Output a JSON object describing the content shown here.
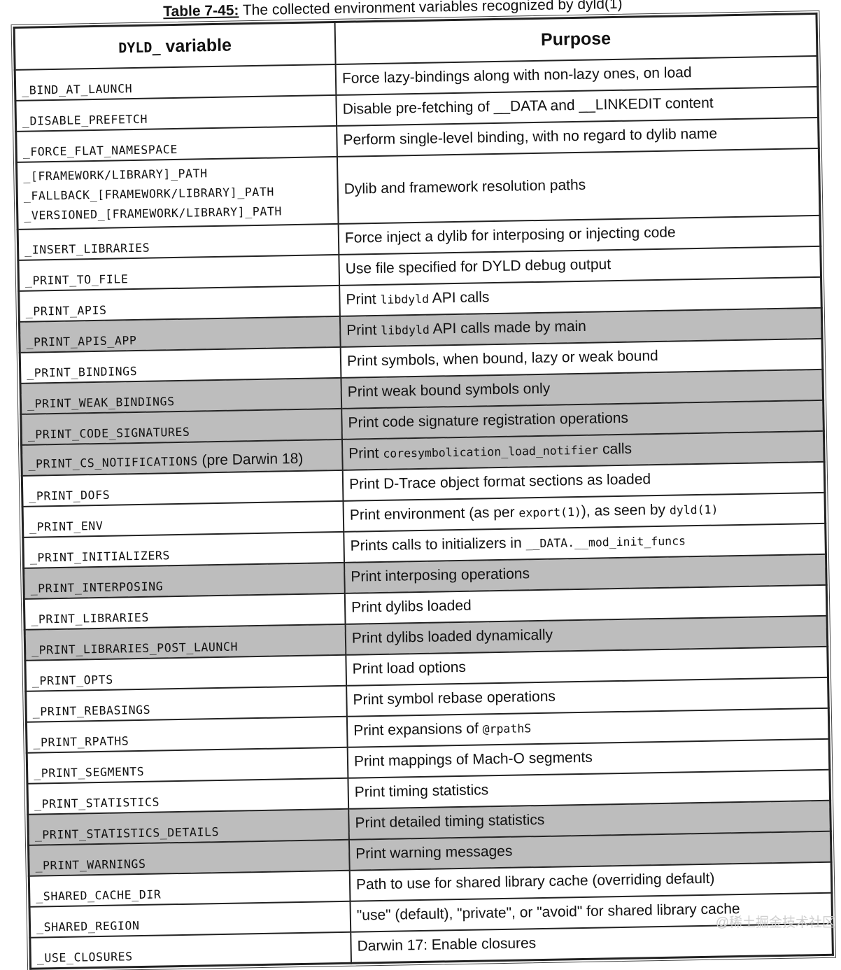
{
  "caption": {
    "label": "Table 7-45:",
    "text": " The collected environment variables recognized by dyld(1)"
  },
  "header": {
    "variable_prefix": "DYLD_",
    "variable_word": " variable",
    "purpose": "Purpose"
  },
  "colors": {
    "shade": "#bdbdbd",
    "border": "#222222"
  },
  "rows": [
    {
      "variable": [
        "_BIND_AT_LAUNCH"
      ],
      "purpose": [
        {
          "t": "Force lazy-bindings along with non-lazy ones, on load"
        }
      ],
      "shaded": false
    },
    {
      "variable": [
        "_DISABLE_PREFETCH"
      ],
      "purpose": [
        {
          "t": "Disable pre-fetching of __DATA and __LINKEDIT content"
        }
      ],
      "shaded": false
    },
    {
      "variable": [
        "_FORCE_FLAT_NAMESPACE"
      ],
      "purpose": [
        {
          "t": "Perform single-level binding, with no regard to dylib name"
        }
      ],
      "shaded": false
    },
    {
      "variable": [
        "_[FRAMEWORK/LIBRARY]_PATH",
        "_FALLBACK_[FRAMEWORK/LIBRARY]_PATH",
        "_VERSIONED_[FRAMEWORK/LIBRARY]_PATH"
      ],
      "purpose": [
        {
          "t": "Dylib and framework resolution paths"
        }
      ],
      "shaded": false
    },
    {
      "variable": [
        "_INSERT_LIBRARIES"
      ],
      "purpose": [
        {
          "t": "Force inject a dylib for interposing or injecting code"
        }
      ],
      "shaded": false
    },
    {
      "variable": [
        "_PRINT_TO_FILE"
      ],
      "purpose": [
        {
          "t": "Use file specified for DYLD debug output"
        }
      ],
      "shaded": false
    },
    {
      "variable": [
        "_PRINT_APIS"
      ],
      "purpose": [
        {
          "t": "Print "
        },
        {
          "t": "libdyld",
          "m": true
        },
        {
          "t": " API calls"
        }
      ],
      "shaded": false
    },
    {
      "variable": [
        "_PRINT_APIS_APP"
      ],
      "purpose": [
        {
          "t": "Print "
        },
        {
          "t": "libdyld",
          "m": true
        },
        {
          "t": " API calls made by main"
        }
      ],
      "shaded": true
    },
    {
      "variable": [
        "_PRINT_BINDINGS"
      ],
      "purpose": [
        {
          "t": "Print symbols, when bound, lazy or weak bound"
        }
      ],
      "shaded": false
    },
    {
      "variable": [
        "_PRINT_WEAK_BINDINGS"
      ],
      "purpose": [
        {
          "t": "Print weak bound symbols only"
        }
      ],
      "shaded": true
    },
    {
      "variable": [
        "_PRINT_CODE_SIGNATURES"
      ],
      "purpose": [
        {
          "t": "Print code signature registration operations"
        }
      ],
      "shaded": true
    },
    {
      "variable": [
        "_PRINT_CS_NOTIFICATIONS"
      ],
      "variable_note": " (pre Darwin 18)",
      "purpose": [
        {
          "t": "Print "
        },
        {
          "t": "coresymbolication_load_notifier",
          "m": true
        },
        {
          "t": " calls"
        }
      ],
      "shaded": true
    },
    {
      "variable": [
        "_PRINT_DOFS"
      ],
      "purpose": [
        {
          "t": "Print D-Trace object format sections as loaded"
        }
      ],
      "shaded": false
    },
    {
      "variable": [
        "_PRINT_ENV"
      ],
      "purpose": [
        {
          "t": "Print environment (as per "
        },
        {
          "t": "export(1)",
          "m": true
        },
        {
          "t": "), as seen by "
        },
        {
          "t": "dyld(1)",
          "m": true
        }
      ],
      "shaded": false
    },
    {
      "variable": [
        "_PRINT_INITIALIZERS"
      ],
      "purpose": [
        {
          "t": "Prints calls to initializers in "
        },
        {
          "t": "__DATA.__mod_init_funcs",
          "m": true
        }
      ],
      "shaded": false
    },
    {
      "variable": [
        "_PRINT_INTERPOSING"
      ],
      "purpose": [
        {
          "t": "Print interposing operations"
        }
      ],
      "shaded": true
    },
    {
      "variable": [
        "_PRINT_LIBRARIES"
      ],
      "purpose": [
        {
          "t": "Print dylibs loaded"
        }
      ],
      "shaded": false
    },
    {
      "variable": [
        "_PRINT_LIBRARIES_POST_LAUNCH"
      ],
      "purpose": [
        {
          "t": "Print dylibs loaded dynamically"
        }
      ],
      "shaded": true
    },
    {
      "variable": [
        "_PRINT_OPTS"
      ],
      "purpose": [
        {
          "t": "Print load options"
        }
      ],
      "shaded": false
    },
    {
      "variable": [
        "_PRINT_REBASINGS"
      ],
      "purpose": [
        {
          "t": "Print symbol rebase operations"
        }
      ],
      "shaded": false
    },
    {
      "variable": [
        "_PRINT_RPATHS"
      ],
      "purpose": [
        {
          "t": "Print expansions of "
        },
        {
          "t": "@rpathS",
          "m": true
        }
      ],
      "shaded": false
    },
    {
      "variable": [
        "_PRINT_SEGMENTS"
      ],
      "purpose": [
        {
          "t": "Print mappings of Mach-O segments"
        }
      ],
      "shaded": false
    },
    {
      "variable": [
        "_PRINT_STATISTICS"
      ],
      "purpose": [
        {
          "t": "Print timing statistics"
        }
      ],
      "shaded": false
    },
    {
      "variable": [
        "_PRINT_STATISTICS_DETAILS"
      ],
      "purpose": [
        {
          "t": "Print detailed timing statistics"
        }
      ],
      "shaded": true
    },
    {
      "variable": [
        "_PRINT_WARNINGS"
      ],
      "purpose": [
        {
          "t": "Print warning messages"
        }
      ],
      "shaded": true
    },
    {
      "variable": [
        "_SHARED_CACHE_DIR"
      ],
      "purpose": [
        {
          "t": "Path to use for shared library cache (overriding default)"
        }
      ],
      "shaded": false
    },
    {
      "variable": [
        "_SHARED_REGION"
      ],
      "purpose": [
        {
          "t": "\"use\" (default), \"private\", or \"avoid\" for shared library cache"
        }
      ],
      "shaded": false
    },
    {
      "variable": [
        "_USE_CLOSURES"
      ],
      "purpose": [
        {
          "t": "Darwin 17: Enable closures"
        }
      ],
      "shaded": false
    }
  ],
  "watermark": "@稀土掘金技术社区"
}
